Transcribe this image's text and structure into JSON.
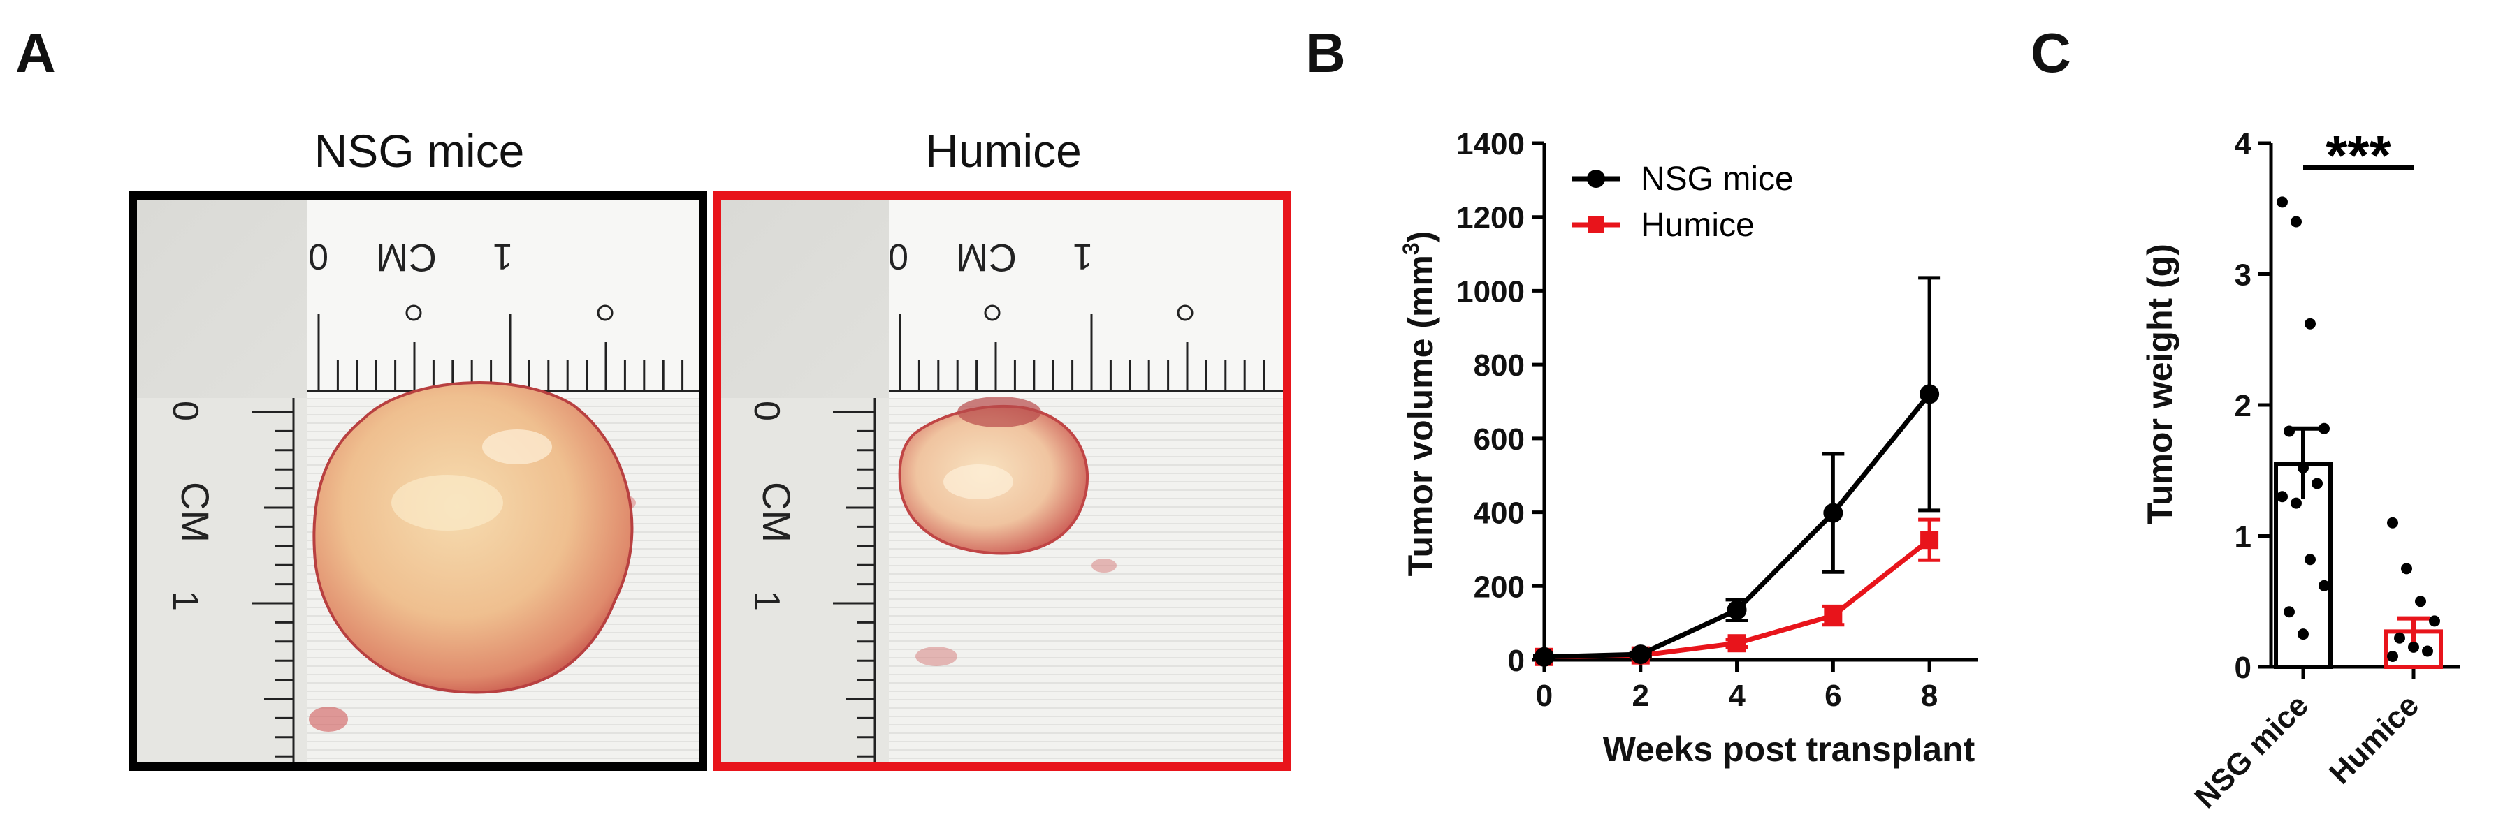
{
  "panels": {
    "a": {
      "letter": "A"
    },
    "b": {
      "letter": "B"
    },
    "c": {
      "letter": "C"
    }
  },
  "photos": [
    {
      "title": "NSG mice",
      "border_color": "#000000",
      "scale_label": "CM",
      "scale_zero": "0",
      "scale_one": "1"
    },
    {
      "title": "Humice",
      "border_color": "#e8141b",
      "scale_label": "CM",
      "scale_zero": "0",
      "scale_one": "1"
    }
  ],
  "chart_data": [
    {
      "type": "line",
      "xlabel": "Weeks post transplant",
      "ylabel": "Tumor volume (mm",
      "ylabel_sup": "3",
      "ylabel_end": ")",
      "xlim": [
        0,
        9
      ],
      "ylim": [
        0,
        1400
      ],
      "xticks": [
        0,
        2,
        4,
        6,
        8
      ],
      "yticks": [
        0,
        200,
        400,
        600,
        800,
        1000,
        1200,
        1400
      ],
      "legend_position": "top-left",
      "series": [
        {
          "name": "NSG mice",
          "color": "#000000",
          "marker": "circle",
          "x": [
            0,
            2,
            4,
            6,
            8
          ],
          "y": [
            8,
            15,
            135,
            398,
            720
          ],
          "err": [
            4,
            5,
            28,
            160,
            315
          ]
        },
        {
          "name": "Humice",
          "color": "#e8141b",
          "marker": "square",
          "x": [
            0,
            2,
            4,
            6,
            8
          ],
          "y": [
            8,
            12,
            45,
            120,
            325
          ],
          "err": [
            3,
            4,
            10,
            25,
            55
          ]
        }
      ]
    },
    {
      "type": "bar",
      "ylabel": "Tumor weight (g)",
      "ylim": [
        0,
        4
      ],
      "yticks": [
        0,
        1,
        2,
        3,
        4
      ],
      "categories": [
        "NSG mice",
        "Humice"
      ],
      "values": [
        1.55,
        0.27
      ],
      "sem": [
        0.27,
        0.1
      ],
      "colors": [
        "#000000",
        "#e8141b"
      ],
      "points": [
        [
          3.55,
          3.4,
          2.62,
          1.82,
          1.8,
          1.52,
          1.4,
          1.3,
          1.25,
          0.82,
          0.62,
          0.42,
          0.25
        ],
        [
          1.1,
          0.75,
          0.5,
          0.35,
          0.22,
          0.15,
          0.12,
          0.08
        ]
      ],
      "significance": "***"
    }
  ]
}
